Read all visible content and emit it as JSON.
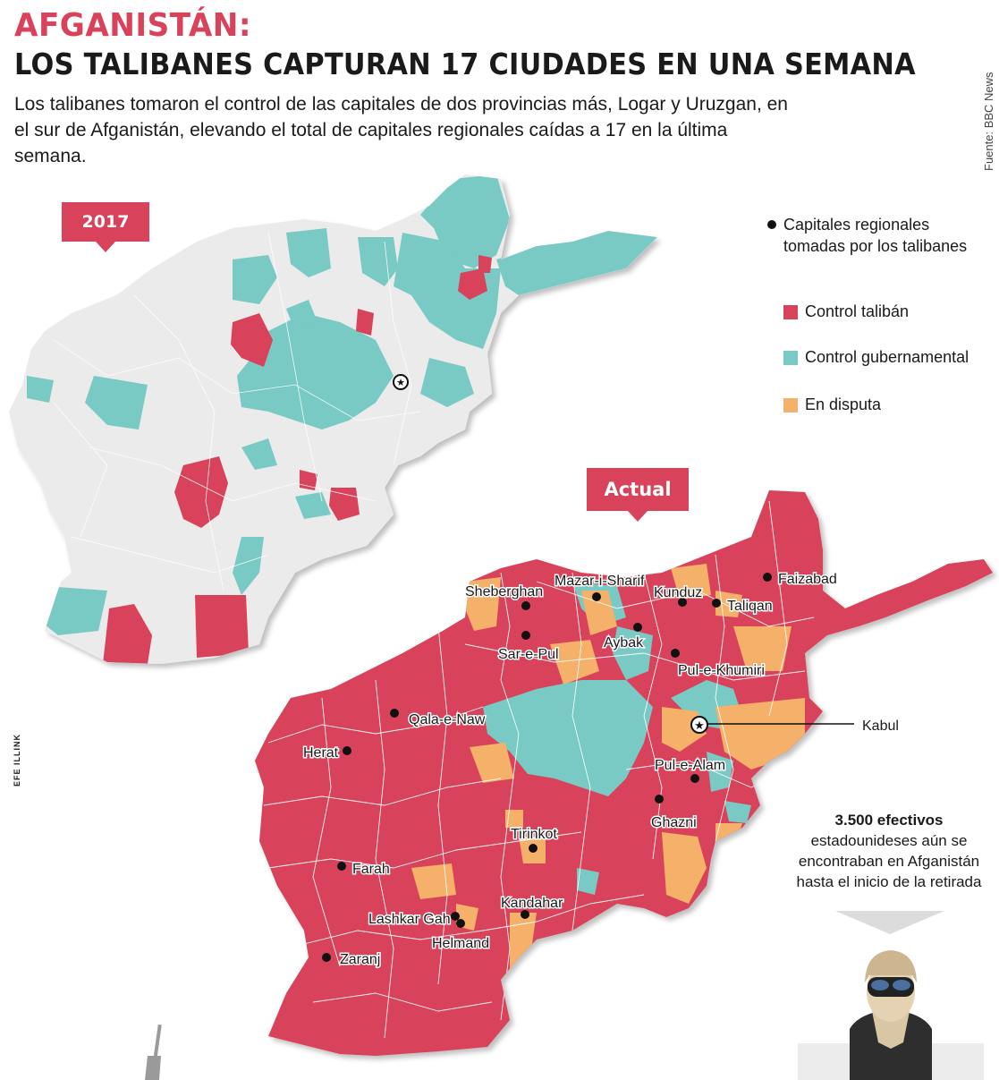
{
  "header": {
    "title": "AFGANISTÁN:",
    "headline": "LOS TALIBANES CAPTURAN 17 CIUDADES EN UNA SEMANA",
    "subtitle": "Los talibanes tomaron el control de las capitales de dos provincias más, Logar y Uruzgan, en el sur de Afganistán, elevando el total de capitales regionales caídas a 17 en la última semana.",
    "source": "Fuente: BBC News"
  },
  "maps": {
    "map_2017_label": "2017",
    "map_actual_label": "Actual"
  },
  "legend": {
    "dot_label": "Capitales regionales tomadas por los talibanes",
    "items": [
      {
        "label": "Control talibán",
        "color": "#d8425a"
      },
      {
        "label": "Control gubernamental",
        "color": "#79c9c4"
      },
      {
        "label": "En disputa",
        "color": "#f5b06a"
      }
    ]
  },
  "colors": {
    "taliban": "#d8425a",
    "government": "#79c9c4",
    "disputed": "#f5b06a",
    "no_data": "#ebebeb"
  },
  "cities": [
    {
      "name": "Sheberghan"
    },
    {
      "name": "Mazar-i-Sharif"
    },
    {
      "name": "Kunduz"
    },
    {
      "name": "Taliqan"
    },
    {
      "name": "Faizabad"
    },
    {
      "name": "Sar-e-Pul"
    },
    {
      "name": "Aybak"
    },
    {
      "name": "Pul-e-Khumiri"
    },
    {
      "name": "Qala-e-Naw"
    },
    {
      "name": "Herat"
    },
    {
      "name": "Kabul"
    },
    {
      "name": "Pul-e-Alam"
    },
    {
      "name": "Ghazni"
    },
    {
      "name": "Tirinkot"
    },
    {
      "name": "Farah"
    },
    {
      "name": "Kandahar"
    },
    {
      "name": "Lashkar Gah"
    },
    {
      "name": "Helmand"
    },
    {
      "name": "Zaranj"
    }
  ],
  "callout": {
    "figure": "3.500 efectivos",
    "text": "estadounideses aún se encontraban en Afganistán hasta el inicio de la retirada"
  },
  "credit": "EFE ILLINK"
}
